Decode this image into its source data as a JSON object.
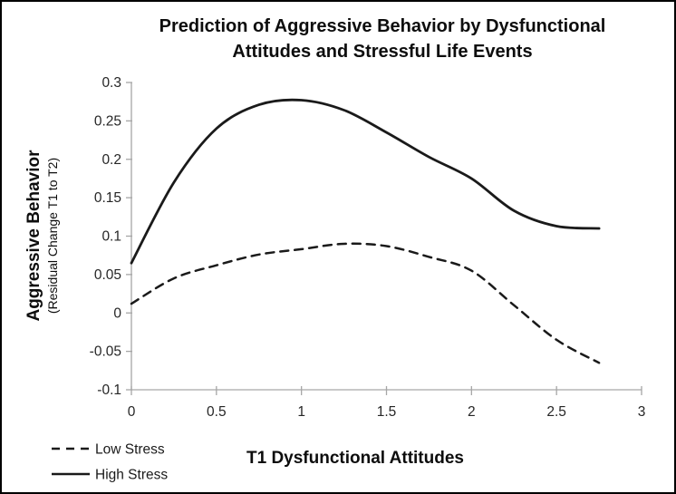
{
  "figure": {
    "title_line1": "Prediction of Aggressive Behavior by Dysfunctional",
    "title_line2": "Attitudes and Stressful Life Events",
    "y_axis_title": "Aggressive Behavior",
    "y_axis_subtitle": "(Residual Change T1 to T2)",
    "x_axis_title": "T1 Dysfunctional Attitudes"
  },
  "chart_data": {
    "type": "line",
    "title": "Prediction of Aggressive Behavior by Dysfunctional Attitudes and Stressful Life Events",
    "xlabel": "T1 Dysfunctional Attitudes",
    "ylabel": "Aggressive Behavior (Residual Change T1 to T2)",
    "xlim": [
      0,
      3
    ],
    "ylim": [
      -0.1,
      0.3
    ],
    "grid": false,
    "legend_position": "bottom-left",
    "x_tick_values": [
      0,
      0.5,
      1,
      1.5,
      2,
      2.5,
      3
    ],
    "x_tick_labels": [
      "0",
      "0.5",
      "1",
      "1.5",
      "2",
      "2.5",
      "3"
    ],
    "y_tick_values": [
      0.3,
      0.25,
      0.2,
      0.15,
      0.1,
      0.05,
      0,
      -0.05,
      -0.1
    ],
    "y_tick_labels": [
      "0.3",
      "0.25",
      "0.2",
      "0.15",
      "0.1",
      "0.05",
      "0",
      "-0.05",
      "-0.1"
    ],
    "x": [
      0,
      0.25,
      0.5,
      0.75,
      1.0,
      1.25,
      1.5,
      1.75,
      2.0,
      2.25,
      2.5,
      2.75
    ],
    "series": [
      {
        "name": "Low Stress",
        "style": "dashed",
        "values": [
          0.012,
          0.045,
          0.062,
          0.076,
          0.083,
          0.09,
          0.087,
          0.073,
          0.055,
          0.01,
          -0.035,
          -0.065
        ]
      },
      {
        "name": "High Stress",
        "style": "solid",
        "values": [
          0.065,
          0.17,
          0.24,
          0.271,
          0.277,
          0.264,
          0.235,
          0.203,
          0.175,
          0.133,
          0.113,
          0.11
        ]
      }
    ],
    "colors": {
      "line": "#1a1a1a",
      "axis": "#a6a6a6",
      "tick_text": "#262626",
      "background": "#ffffff"
    }
  }
}
